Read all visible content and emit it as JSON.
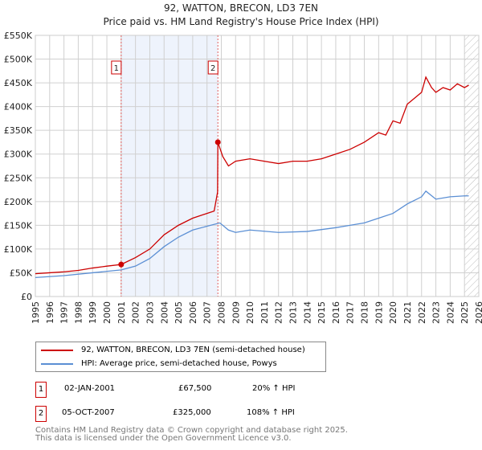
{
  "title": "92, WATTON, BRECON, LD3 7EN",
  "subtitle": "Price paid vs. HM Land Registry's House Price Index (HPI)",
  "chart_data": {
    "type": "line",
    "title": "92, WATTON, BRECON, LD3 7EN",
    "subtitle": "Price paid vs. HM Land Registry's House Price Index (HPI)",
    "xlim": [
      1995,
      2026
    ],
    "ylim": [
      0,
      550000
    ],
    "x_ticks": [
      "1995",
      "1996",
      "1997",
      "1998",
      "1999",
      "2000",
      "2001",
      "2002",
      "2003",
      "2004",
      "2005",
      "2006",
      "2007",
      "2008",
      "2009",
      "2010",
      "2011",
      "2012",
      "2013",
      "2014",
      "2015",
      "2016",
      "2017",
      "2018",
      "2019",
      "2020",
      "2021",
      "2022",
      "2023",
      "2024",
      "2025",
      "2026"
    ],
    "y_ticks": [
      {
        "v": 0,
        "label": "£0"
      },
      {
        "v": 50000,
        "label": "£50K"
      },
      {
        "v": 100000,
        "label": "£100K"
      },
      {
        "v": 150000,
        "label": "£150K"
      },
      {
        "v": 200000,
        "label": "£200K"
      },
      {
        "v": 250000,
        "label": "£250K"
      },
      {
        "v": 300000,
        "label": "£300K"
      },
      {
        "v": 350000,
        "label": "£350K"
      },
      {
        "v": 400000,
        "label": "£400K"
      },
      {
        "v": 450000,
        "label": "£450K"
      },
      {
        "v": 500000,
        "label": "£500K"
      },
      {
        "v": 550000,
        "label": "£550K"
      }
    ],
    "grid": true,
    "series": [
      {
        "name": "92, WATTON, BRECON, LD3 7EN (semi-detached house)",
        "color": "#cc0000",
        "x": [
          1995,
          1996,
          1997,
          1998,
          1999,
          2000,
          2001.0,
          2002,
          2003,
          2004,
          2005,
          2006,
          2007.5,
          2007.74,
          2007.76,
          2008.1,
          2008.5,
          2009,
          2010,
          2011,
          2012,
          2013,
          2014,
          2015,
          2016,
          2017,
          2018,
          2019,
          2019.5,
          2020,
          2020.5,
          2021,
          2022,
          2022.3,
          2022.7,
          2023,
          2023.5,
          2024,
          2024.5,
          2025,
          2025.3
        ],
        "y": [
          48000,
          50000,
          52000,
          55000,
          60000,
          64000,
          67500,
          82000,
          100000,
          130000,
          150000,
          165000,
          180000,
          220000,
          325000,
          295000,
          275000,
          285000,
          290000,
          285000,
          280000,
          285000,
          285000,
          290000,
          300000,
          310000,
          325000,
          345000,
          340000,
          370000,
          365000,
          405000,
          430000,
          462000,
          440000,
          430000,
          440000,
          435000,
          448000,
          440000,
          445000
        ]
      },
      {
        "name": "HPI: Average price, semi-detached house, Powys",
        "color": "#5b8fd4",
        "x": [
          1995,
          1997,
          1999,
          2001,
          2002,
          2003,
          2004,
          2005,
          2006,
          2007,
          2007.9,
          2008.5,
          2009,
          2010,
          2012,
          2014,
          2016,
          2017,
          2018,
          2019,
          2020,
          2021,
          2022,
          2022.3,
          2023,
          2024,
          2025,
          2025.3
        ],
        "y": [
          40000,
          44000,
          50000,
          56000,
          64000,
          80000,
          105000,
          125000,
          140000,
          148000,
          155000,
          140000,
          135000,
          140000,
          135000,
          137000,
          145000,
          150000,
          155000,
          165000,
          175000,
          195000,
          210000,
          222000,
          205000,
          210000,
          212000,
          212000
        ]
      }
    ],
    "sales": [
      {
        "label": "1",
        "x": 2001.0,
        "y": 67500
      },
      {
        "label": "2",
        "x": 2007.76,
        "y": 325000
      }
    ],
    "shaded_range": [
      2001.0,
      2007.76
    ],
    "hatched_from": 2025.0,
    "legend_position": "below"
  },
  "legend": [
    "92, WATTON, BRECON, LD3 7EN (semi-detached house)",
    "HPI: Average price, semi-detached house, Powys"
  ],
  "sales_table": [
    {
      "num": "1",
      "date": "02-JAN-2001",
      "price": "£67,500",
      "hpi": "20% ↑ HPI"
    },
    {
      "num": "2",
      "date": "05-OCT-2007",
      "price": "£325,000",
      "hpi": "108% ↑ HPI"
    }
  ],
  "footer": [
    "Contains HM Land Registry data © Crown copyright and database right 2025.",
    "This data is licensed under the Open Government Licence v3.0."
  ]
}
